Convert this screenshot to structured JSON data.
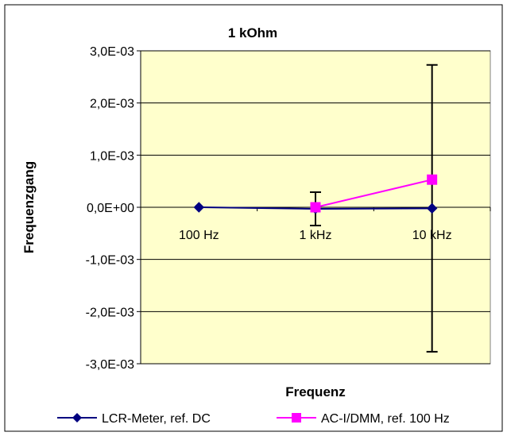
{
  "chart_data": {
    "type": "line",
    "title": "1 kOhm",
    "xlabel": "Frequenz",
    "ylabel": "Frequenzgang",
    "categories": [
      "100 Hz",
      "1 kHz",
      "10 kHz"
    ],
    "ylim": [
      -0.003,
      0.003
    ],
    "yticks": [
      "-3,0E-03",
      "-2,0E-03",
      "-1,0E-03",
      "0,0E+00",
      "1,0E-03",
      "2,0E-03",
      "3,0E-03"
    ],
    "grid": true,
    "legend_position": "bottom",
    "series": [
      {
        "name": "LCR-Meter, ref. DC",
        "color": "#000080",
        "marker": "diamond",
        "values": [
          0.0,
          -3e-05,
          -2e-05
        ],
        "error": [
          null,
          0.00032,
          0.00275
        ]
      },
      {
        "name": "AC-I/DMM, ref. 100 Hz",
        "color": "#ff00ff",
        "marker": "square",
        "values": [
          null,
          0.0,
          0.00053
        ],
        "error": [
          null,
          null,
          null
        ]
      }
    ]
  }
}
